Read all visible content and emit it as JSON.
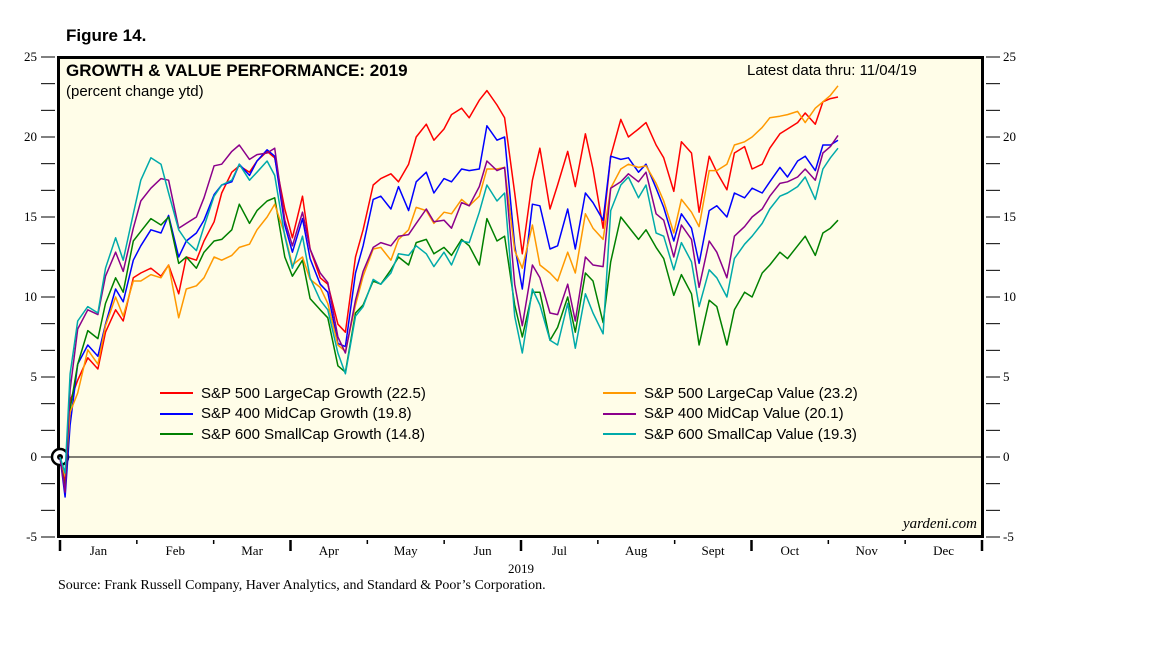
{
  "figure_label": "Figure 14.",
  "chart_data": {
    "type": "line",
    "title": "GROWTH & VALUE PERFORMANCE: 2019",
    "subtitle": "(percent change ytd)",
    "annotation": "Latest data thru: 11/04/19",
    "watermark": "yardeni.com",
    "source": "Source: Frank Russell Company, Haver Analytics, and Standard & Poor’s Corporation.",
    "xlabel": "2019",
    "ylabel": "",
    "x_ticks": [
      "Jan",
      "Feb",
      "Mar",
      "Apr",
      "May",
      "Jun",
      "Jul",
      "Aug",
      "Sept",
      "Oct",
      "Nov",
      "Dec"
    ],
    "x_range_days": [
      0,
      365
    ],
    "y_ticks": [
      25,
      20,
      15,
      10,
      5,
      0,
      -5
    ],
    "ylim": [
      -5,
      25
    ],
    "grid": false,
    "zero_line": true,
    "legend_position": "bottom-center",
    "x_days": [
      0,
      2,
      4,
      7,
      11,
      15,
      18,
      22,
      25,
      29,
      32,
      36,
      40,
      43,
      47,
      50,
      54,
      57,
      61,
      64,
      68,
      71,
      75,
      78,
      82,
      85,
      89,
      92,
      96,
      99,
      103,
      106,
      110,
      113,
      117,
      120,
      124,
      127,
      131,
      134,
      138,
      141,
      145,
      148,
      152,
      155,
      159,
      162,
      166,
      169,
      173,
      176,
      180,
      183,
      187,
      190,
      194,
      197,
      201,
      204,
      208,
      211,
      215,
      218,
      222,
      225,
      229,
      232,
      236,
      239,
      243,
      246,
      250,
      253,
      257,
      260,
      264,
      267,
      271,
      274,
      278,
      281,
      285,
      288,
      292,
      295,
      299,
      302,
      305,
      308
    ],
    "series": [
      {
        "name": "S&P 500 LargeCap Growth",
        "latest": 22.5,
        "color": "#ff0000",
        "values": [
          0,
          -1.5,
          3.5,
          4.8,
          6.2,
          5.5,
          7.8,
          9.2,
          8.5,
          11.2,
          11.5,
          11.8,
          11.3,
          12.0,
          10.2,
          12.5,
          12.3,
          13.5,
          14.7,
          16.5,
          17.8,
          18.2,
          17.8,
          18.5,
          19.1,
          18.7,
          15.5,
          13.7,
          16.3,
          13.0,
          11.2,
          10.8,
          8.3,
          7.8,
          12.5,
          14.2,
          17.0,
          17.4,
          17.7,
          17.2,
          18.3,
          20.0,
          20.8,
          19.8,
          20.5,
          21.4,
          21.8,
          21.2,
          22.3,
          22.9,
          22.0,
          21.2,
          16.5,
          12.7,
          17.3,
          19.3,
          15.5,
          17.0,
          19.1,
          16.9,
          20.2,
          18.0,
          14.3,
          18.8,
          21.1,
          20.0,
          20.5,
          20.9,
          19.5,
          18.7,
          16.6,
          19.7,
          19.0,
          15.3,
          18.8,
          17.8,
          16.7,
          19.0,
          19.4,
          18.0,
          18.3,
          19.3,
          20.2,
          20.5,
          20.9,
          21.5,
          20.8,
          22.2,
          22.4,
          22.5
        ]
      },
      {
        "name": "S&P 400 MidCap Growth",
        "latest": 19.8,
        "color": "#0000ff",
        "values": [
          0,
          -2.5,
          2.0,
          5.8,
          7.0,
          6.3,
          8.3,
          10.5,
          9.7,
          12.3,
          13.2,
          14.2,
          14.0,
          15.1,
          12.5,
          13.5,
          14.0,
          14.8,
          16.4,
          17.0,
          17.2,
          18.3,
          17.6,
          18.5,
          19.2,
          18.8,
          14.5,
          12.8,
          14.9,
          12.4,
          10.8,
          10.3,
          7.1,
          6.9,
          11.5,
          13.2,
          16.1,
          16.3,
          15.5,
          16.9,
          15.4,
          17.2,
          17.8,
          16.5,
          17.4,
          17.2,
          18.0,
          17.9,
          18.0,
          20.7,
          19.8,
          20.0,
          13.2,
          10.5,
          15.8,
          15.7,
          13.0,
          13.2,
          15.5,
          13.0,
          16.5,
          15.9,
          14.8,
          18.8,
          18.6,
          18.7,
          17.8,
          18.3,
          16.8,
          15.6,
          13.5,
          15.2,
          14.3,
          12.1,
          15.4,
          15.7,
          15.0,
          16.5,
          16.2,
          16.8,
          16.5,
          17.2,
          18.1,
          17.5,
          18.5,
          18.8,
          17.9,
          19.5,
          19.5,
          19.8
        ]
      },
      {
        "name": "S&P 600 SmallCap Growth",
        "latest": 14.8,
        "color": "#008000",
        "values": [
          0,
          -2.0,
          3.0,
          5.8,
          7.9,
          7.4,
          9.6,
          11.2,
          10.3,
          13.5,
          14.1,
          14.9,
          14.5,
          15.0,
          12.1,
          12.5,
          11.8,
          12.8,
          13.5,
          13.6,
          14.2,
          15.8,
          14.6,
          15.4,
          16.0,
          16.2,
          12.5,
          11.3,
          12.3,
          9.9,
          9.2,
          8.7,
          5.7,
          5.3,
          9.0,
          9.5,
          11.0,
          10.8,
          11.7,
          12.5,
          12.0,
          13.4,
          13.6,
          12.7,
          13.1,
          12.6,
          13.6,
          13.2,
          12.0,
          14.9,
          13.5,
          13.8,
          9.5,
          7.5,
          10.3,
          10.3,
          7.3,
          8.1,
          10.0,
          7.8,
          11.5,
          11.0,
          8.4,
          12.2,
          15.0,
          14.4,
          13.6,
          14.2,
          13.1,
          12.4,
          10.1,
          11.4,
          10.2,
          7.0,
          9.8,
          9.4,
          7.0,
          9.2,
          10.3,
          10.0,
          11.5,
          12.0,
          12.8,
          12.4,
          13.2,
          13.8,
          12.6,
          14.0,
          14.3,
          14.8
        ]
      },
      {
        "name": "S&P 500 LargeCap Value",
        "latest": 23.2,
        "color": "#ff9900",
        "values": [
          0,
          -1.2,
          2.8,
          4.0,
          6.7,
          5.8,
          8.2,
          10.0,
          8.8,
          11.0,
          11.0,
          11.4,
          11.2,
          12.0,
          8.7,
          10.5,
          10.7,
          11.2,
          12.5,
          12.3,
          12.6,
          13.1,
          13.3,
          14.2,
          15.0,
          15.8,
          13.9,
          12.0,
          12.5,
          11.1,
          10.6,
          9.6,
          7.0,
          6.6,
          9.5,
          11.3,
          13.0,
          13.1,
          12.3,
          13.6,
          14.2,
          15.6,
          15.4,
          14.6,
          15.3,
          15.2,
          16.1,
          15.7,
          16.3,
          18.0,
          18.0,
          18.1,
          12.9,
          11.8,
          14.5,
          12.0,
          11.5,
          11.0,
          12.8,
          11.5,
          15.2,
          14.3,
          13.6,
          16.8,
          18.0,
          18.3,
          18.1,
          18.2,
          17.1,
          16.0,
          14.0,
          16.1,
          15.3,
          14.4,
          17.9,
          17.9,
          18.3,
          19.5,
          19.7,
          20.0,
          20.6,
          21.2,
          21.3,
          21.4,
          21.6,
          20.9,
          21.8,
          22.2,
          22.6,
          23.2
        ]
      },
      {
        "name": "S&P 400 MidCap Value",
        "latest": 20.1,
        "color": "#8b008b",
        "values": [
          0,
          -2.2,
          4.2,
          8.0,
          9.2,
          8.9,
          11.3,
          12.8,
          11.6,
          14.3,
          16.0,
          16.8,
          17.4,
          17.3,
          14.3,
          14.6,
          15.0,
          16.2,
          18.2,
          18.3,
          19.1,
          19.5,
          18.6,
          18.9,
          19.0,
          19.3,
          14.8,
          13.2,
          15.3,
          13.0,
          11.5,
          10.9,
          7.5,
          6.5,
          9.8,
          11.6,
          13.1,
          13.4,
          13.2,
          13.8,
          13.9,
          14.6,
          15.5,
          14.7,
          14.8,
          14.3,
          15.9,
          15.7,
          16.9,
          18.5,
          17.9,
          18.1,
          10.8,
          8.2,
          12.0,
          11.2,
          9.0,
          8.9,
          10.8,
          8.5,
          12.5,
          12.0,
          11.9,
          16.8,
          17.2,
          17.7,
          17.2,
          17.8,
          15.2,
          14.8,
          12.5,
          14.5,
          13.6,
          10.6,
          13.5,
          12.8,
          11.2,
          13.8,
          14.4,
          15.0,
          15.5,
          16.3,
          17.1,
          17.2,
          17.5,
          18.0,
          17.3,
          19.0,
          19.4,
          20.1
        ]
      },
      {
        "name": "S&P 600 SmallCap Value",
        "latest": 19.3,
        "color": "#00aaaa",
        "values": [
          0,
          -1.0,
          5.2,
          8.5,
          9.4,
          9.0,
          11.8,
          13.7,
          12.3,
          15.2,
          17.3,
          18.7,
          18.3,
          16.5,
          14.2,
          13.5,
          12.9,
          14.4,
          16.3,
          17.0,
          17.3,
          18.3,
          17.3,
          17.8,
          18.5,
          17.6,
          13.8,
          11.8,
          13.8,
          11.2,
          9.8,
          9.2,
          6.5,
          5.2,
          8.8,
          9.4,
          11.1,
          10.8,
          11.5,
          12.7,
          12.6,
          13.2,
          12.7,
          11.9,
          12.8,
          12.0,
          13.5,
          13.4,
          15.3,
          17.0,
          16.0,
          16.5,
          8.8,
          6.5,
          10.5,
          9.5,
          7.3,
          7.0,
          9.6,
          6.8,
          10.2,
          9.0,
          7.7,
          15.4,
          17.0,
          17.5,
          16.2,
          17.0,
          14.0,
          13.8,
          11.7,
          13.4,
          12.2,
          9.4,
          11.7,
          11.2,
          10.0,
          12.4,
          13.3,
          13.8,
          14.6,
          15.5,
          16.3,
          16.5,
          16.9,
          17.5,
          16.1,
          18.0,
          18.7,
          19.3
        ]
      }
    ]
  }
}
